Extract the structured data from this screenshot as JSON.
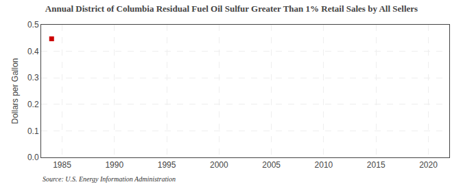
{
  "chart_data": {
    "type": "scatter",
    "title": "Annual District of Columbia Residual Fuel Oil Sulfur Greater Than 1% Retail Sales by All Sellers",
    "ylabel": "Dollars per Gallon",
    "annotations": [
      "Source: U.S. Energy Information Administration"
    ],
    "x": [
      1984
    ],
    "values": [
      0.447
    ],
    "color": "#cc0000",
    "marker": "square",
    "xlim": [
      1983,
      2022
    ],
    "ylim": [
      0.0,
      0.5
    ],
    "xticks": [
      1985,
      1990,
      1995,
      2000,
      2005,
      2010,
      2015,
      2020
    ],
    "yticks": [
      {
        "value": 0.0,
        "label": "0.0"
      },
      0.1,
      0.2,
      0.3,
      0.4,
      0.5
    ],
    "grid": true
  }
}
